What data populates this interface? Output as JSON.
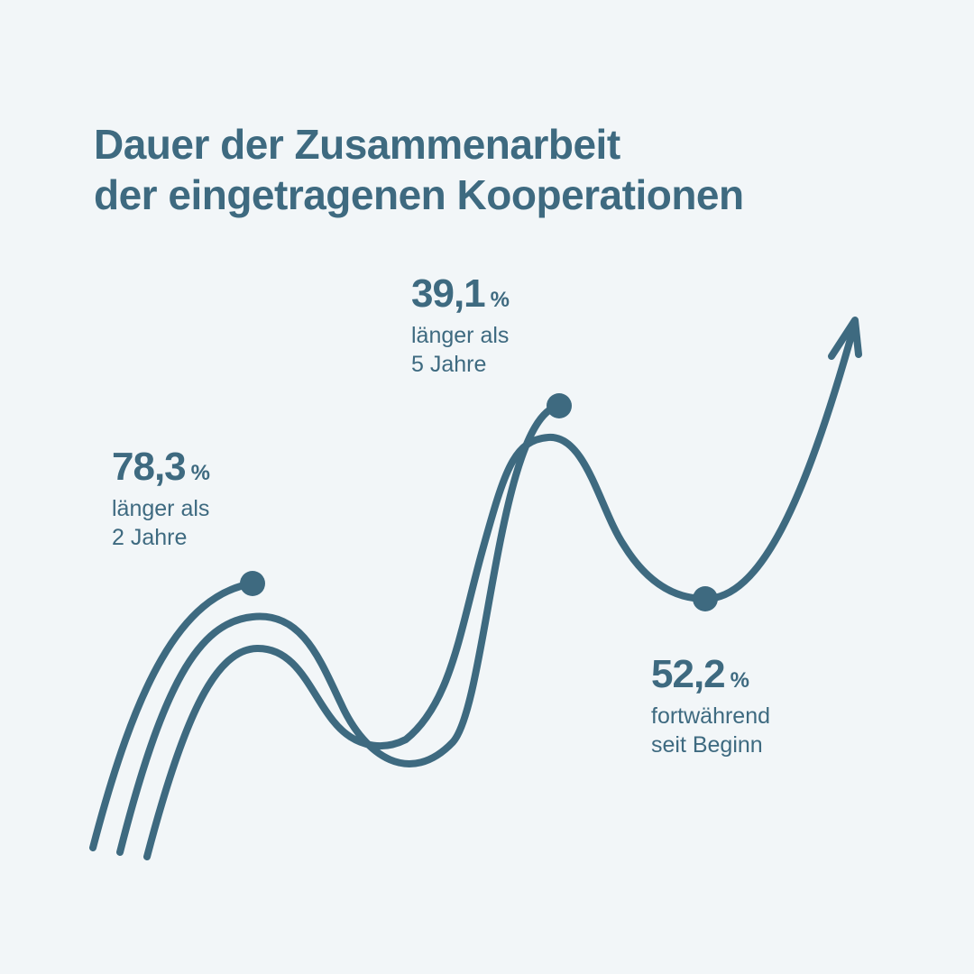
{
  "title": {
    "line1": "Dauer der Zusammenarbeit",
    "line2": "der eingetragenen Kooperationen"
  },
  "colors": {
    "primary": "#3e6a80",
    "background": "#f2f6f8"
  },
  "chart_data": {
    "type": "line",
    "title": "Dauer der Zusammenarbeit der eingetragenen Kooperationen",
    "unit": "%",
    "points": [
      {
        "value": "78,3",
        "unit": "%",
        "label_line1": "länger als",
        "label_line2": "2 Jahre"
      },
      {
        "value": "39,1",
        "unit": "%",
        "label_line1": "länger als",
        "label_line2": "5 Jahre"
      },
      {
        "value": "52,2",
        "unit": "%",
        "label_line1": "fortwährend",
        "label_line2": "seit Beginn"
      }
    ],
    "decoration": "three parallel wavy lines with end dots and an upward arrow"
  }
}
